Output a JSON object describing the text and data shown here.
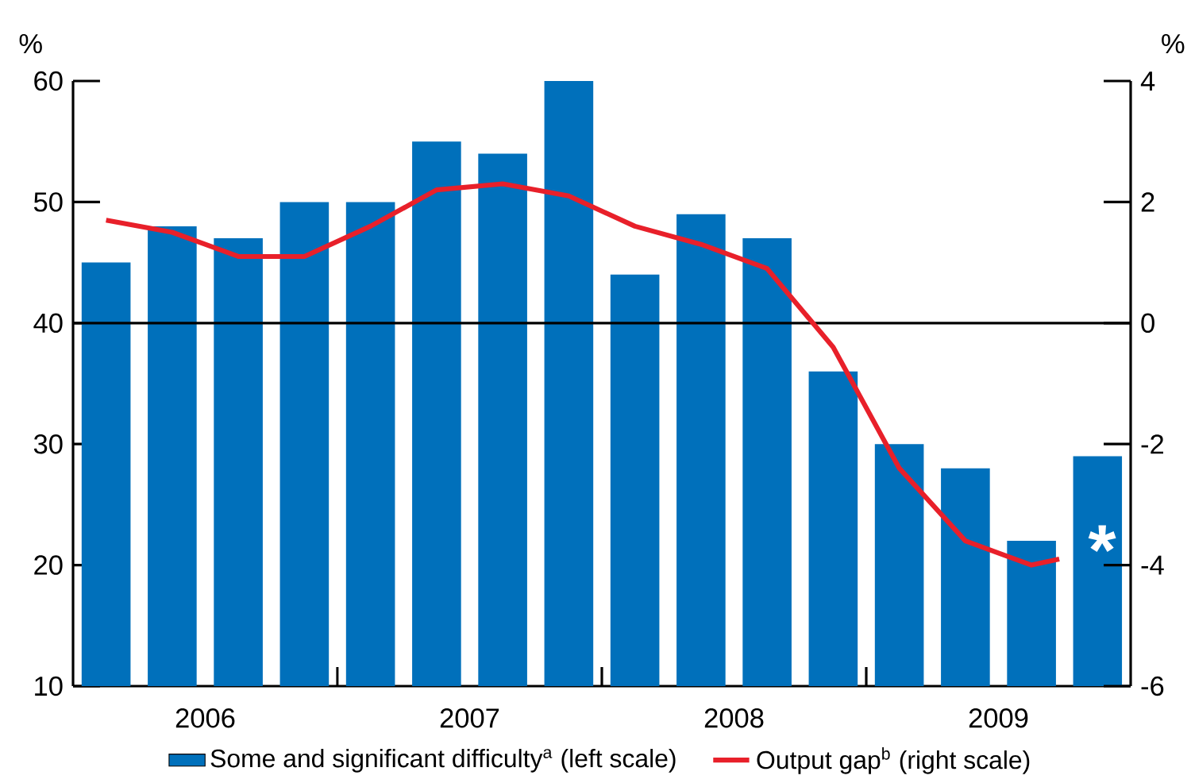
{
  "chart_data": {
    "type": "bar",
    "x": [
      2006.125,
      2006.375,
      2006.625,
      2006.875,
      2007.125,
      2007.375,
      2007.625,
      2007.875,
      2008.125,
      2008.375,
      2008.625,
      2008.875,
      2009.125,
      2009.375,
      2009.625,
      2009.875
    ],
    "xlim": [
      2006,
      2010
    ],
    "xticks": [
      {
        "value": 2006.5,
        "label": "2006"
      },
      {
        "value": 2007,
        "label": null
      },
      {
        "value": 2007.5,
        "label": "2007"
      },
      {
        "value": 2008,
        "label": null
      },
      {
        "value": 2008.5,
        "label": "2008"
      },
      {
        "value": 2009,
        "label": null
      },
      {
        "value": 2009.5,
        "label": "2009"
      }
    ],
    "ylabel": "%",
    "y2label": "%",
    "ylim": [
      10,
      60
    ],
    "yticks": [
      10,
      20,
      30,
      40,
      50,
      60
    ],
    "y2lim": [
      -6,
      4
    ],
    "y2ticks": [
      -6,
      -4,
      -2,
      0,
      2,
      4
    ],
    "legend": "bottom",
    "ref_lines": [
      {
        "axis": "y",
        "value": 40
      }
    ],
    "annotations": [
      "*"
    ],
    "series": [
      {
        "name": "Some and significant difficulty$^{a}$ (left scale)",
        "color": "#0070bb",
        "values": [
          45,
          48,
          47,
          50,
          50,
          55,
          54,
          60,
          44,
          49,
          47,
          36,
          30,
          28,
          22,
          29
        ]
      },
      {
        "name": "Output gap$^{b}$ (right scale)",
        "type": "line",
        "axis": "y2",
        "color": "#e8202a",
        "x": [
          2006.125,
          2006.375,
          2006.625,
          2006.875,
          2007.125,
          2007.375,
          2007.625,
          2007.875,
          2008.125,
          2008.375,
          2008.625,
          2008.875,
          2009.125,
          2009.375,
          2009.625,
          2009.73
        ],
        "values": [
          1.7,
          1.5,
          1.1,
          1.1,
          1.6,
          2.2,
          2.3,
          2.1,
          1.6,
          1.3,
          0.9,
          -0.4,
          -2.4,
          -3.6,
          -4.0,
          -3.9
        ]
      }
    ]
  }
}
